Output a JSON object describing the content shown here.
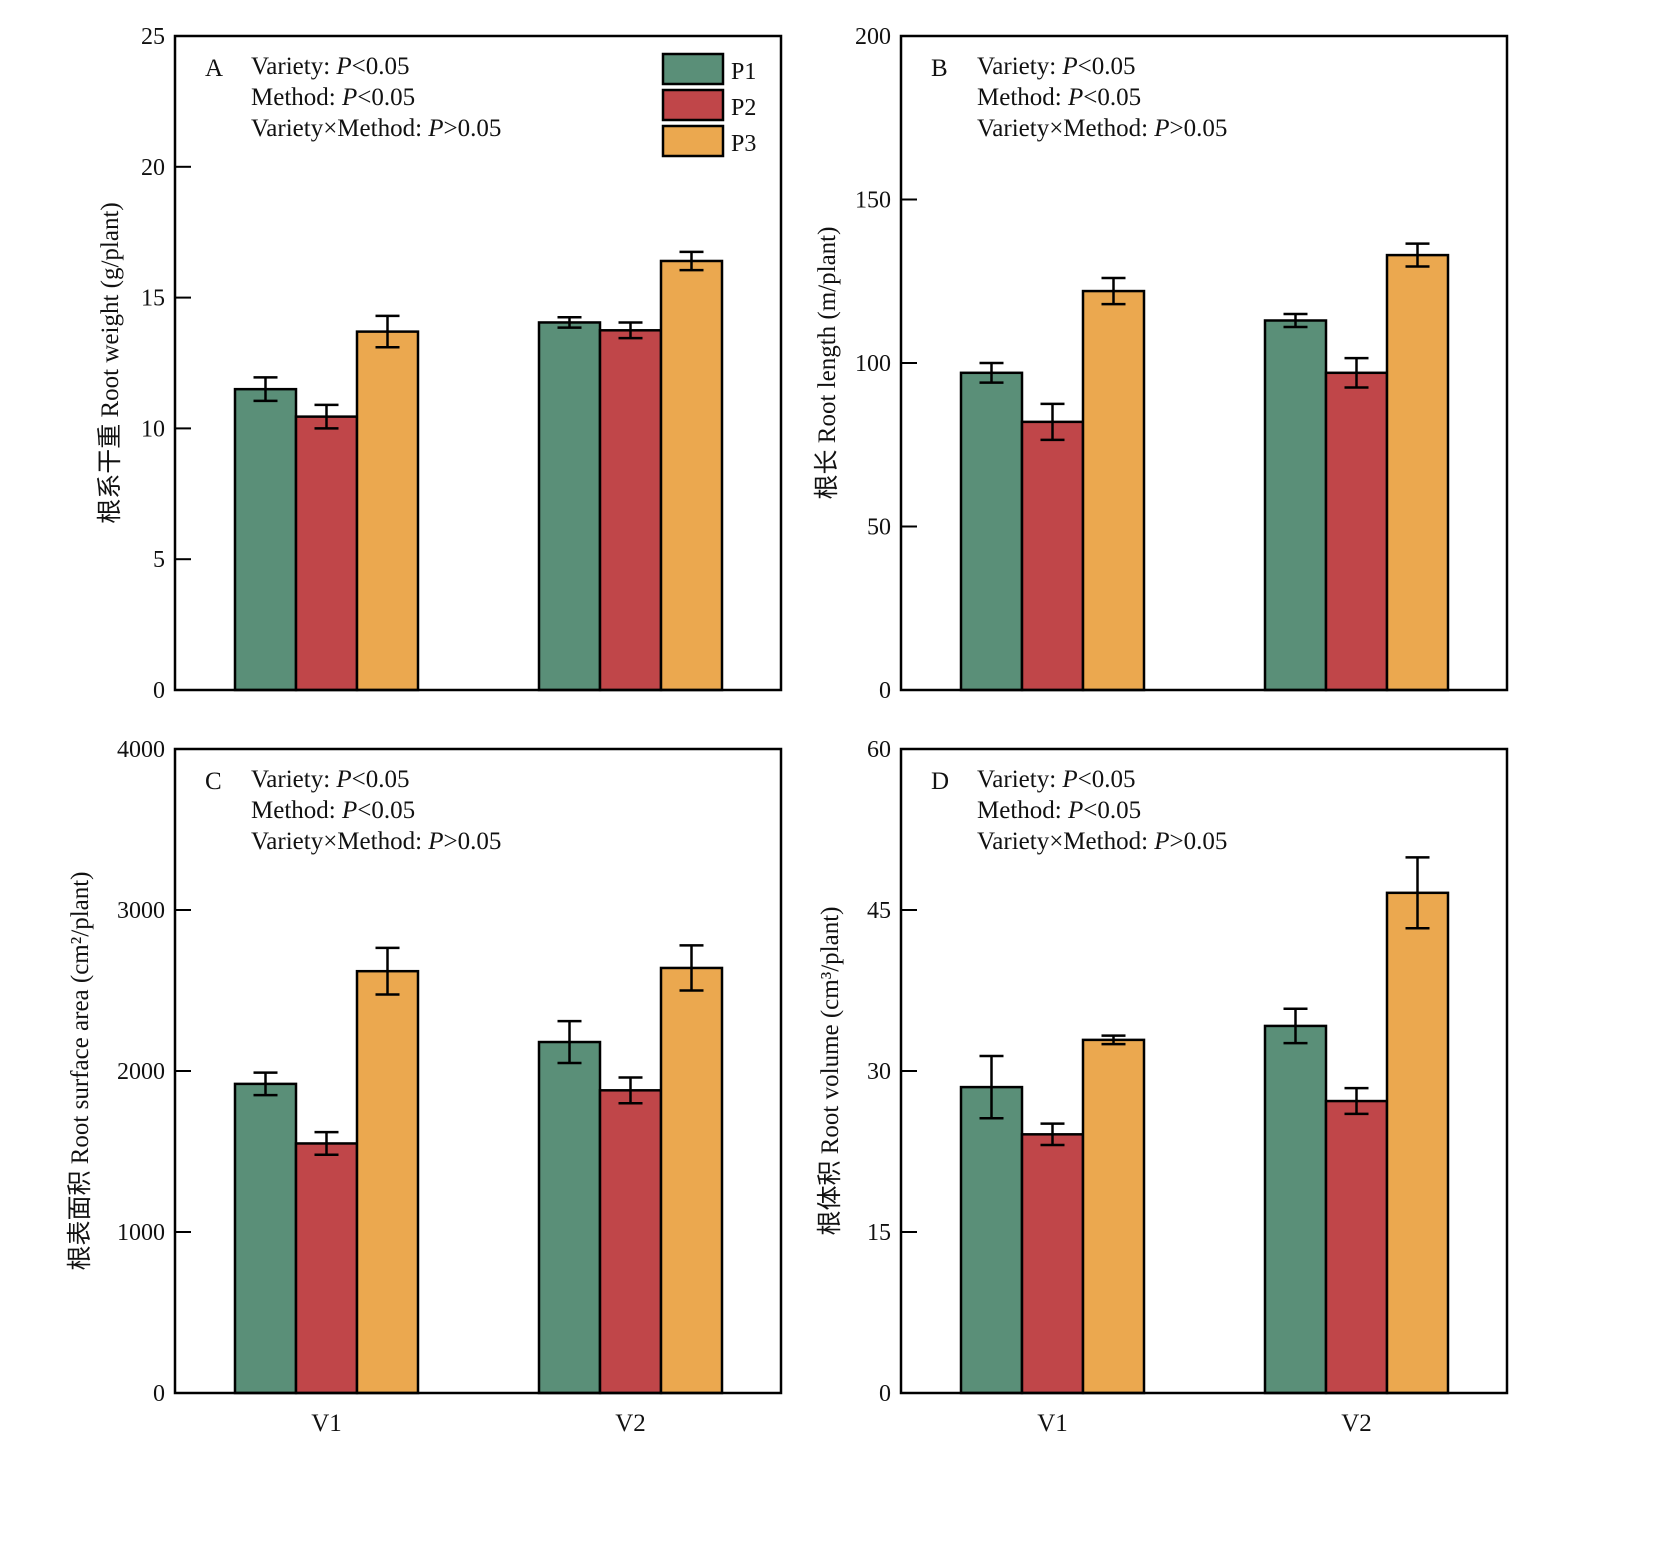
{
  "chart_data": [
    {
      "type": "bar",
      "panel": "A",
      "categories": [
        "V1",
        "V2"
      ],
      "series": [
        {
          "name": "P1",
          "values": [
            11.5,
            14.05
          ],
          "errors": [
            0.45,
            0.2
          ]
        },
        {
          "name": "P2",
          "values": [
            10.45,
            13.75
          ],
          "errors": [
            0.45,
            0.3
          ]
        },
        {
          "name": "P3",
          "values": [
            13.7,
            16.4
          ],
          "errors": [
            0.6,
            0.35
          ]
        }
      ],
      "ylabel": "根系干重 Root weight (g/plant)",
      "ylim": [
        0,
        25
      ],
      "yticks": [
        0,
        5,
        10,
        15,
        20,
        25
      ],
      "show_xticklabels": false,
      "stats": [
        {
          "label": "Variety: ",
          "p": "P",
          "rest": "<0.05"
        },
        {
          "label": "Method: ",
          "p": "P",
          "rest": "<0.05"
        },
        {
          "label": "Variety×Method: ",
          "p": "P",
          "rest": ">0.05"
        }
      ],
      "legend": true,
      "legend_position": "top-right"
    },
    {
      "type": "bar",
      "panel": "B",
      "categories": [
        "V1",
        "V2"
      ],
      "series": [
        {
          "name": "P1",
          "values": [
            97,
            113
          ],
          "errors": [
            3,
            2
          ]
        },
        {
          "name": "P2",
          "values": [
            82,
            97
          ],
          "errors": [
            5.5,
            4.5
          ]
        },
        {
          "name": "P3",
          "values": [
            122,
            133
          ],
          "errors": [
            4,
            3.5
          ]
        }
      ],
      "ylabel": "根长 Root length (m/plant)",
      "ylim": [
        0,
        200
      ],
      "yticks": [
        0,
        50,
        100,
        150,
        200
      ],
      "show_xticklabels": false,
      "stats": [
        {
          "label": "Variety: ",
          "p": "P",
          "rest": "<0.05"
        },
        {
          "label": "Method: ",
          "p": "P",
          "rest": "<0.05"
        },
        {
          "label": "Variety×Method: ",
          "p": "P",
          "rest": ">0.05"
        }
      ],
      "legend": false
    },
    {
      "type": "bar",
      "panel": "C",
      "categories": [
        "V1",
        "V2"
      ],
      "series": [
        {
          "name": "P1",
          "values": [
            1920,
            2180
          ],
          "errors": [
            70,
            130
          ]
        },
        {
          "name": "P2",
          "values": [
            1550,
            1880
          ],
          "errors": [
            70,
            80
          ]
        },
        {
          "name": "P3",
          "values": [
            2620,
            2640
          ],
          "errors": [
            145,
            140
          ]
        }
      ],
      "ylabel": "根表面积 Root surface area (cm²/plant)",
      "ylim": [
        0,
        4000
      ],
      "yticks": [
        0,
        1000,
        2000,
        3000,
        4000
      ],
      "show_xticklabels": true,
      "stats": [
        {
          "label": "Variety: ",
          "p": "P",
          "rest": "<0.05"
        },
        {
          "label": "Method: ",
          "p": "P",
          "rest": "<0.05"
        },
        {
          "label": "Variety×Method: ",
          "p": "P",
          "rest": ">0.05"
        }
      ],
      "legend": false
    },
    {
      "type": "bar",
      "panel": "D",
      "categories": [
        "V1",
        "V2"
      ],
      "series": [
        {
          "name": "P1",
          "values": [
            28.5,
            34.2
          ],
          "errors": [
            2.9,
            1.6
          ]
        },
        {
          "name": "P2",
          "values": [
            24.1,
            27.2
          ],
          "errors": [
            1.0,
            1.2
          ]
        },
        {
          "name": "P3",
          "values": [
            32.9,
            46.6
          ],
          "errors": [
            0.4,
            3.3
          ]
        }
      ],
      "ylabel": "根体积 Root volume (cm³/plant)",
      "ylim": [
        0,
        60
      ],
      "yticks": [
        0,
        15,
        30,
        45,
        60
      ],
      "show_xticklabels": true,
      "stats": [
        {
          "label": "Variety: ",
          "p": "P",
          "rest": "<0.05"
        },
        {
          "label": "Method: ",
          "p": "P",
          "rest": "<0.05"
        },
        {
          "label": "Variety×Method: ",
          "p": "P",
          "rest": ">0.05"
        }
      ],
      "legend": false
    }
  ],
  "colors": {
    "P1": "#5a8f78",
    "P2": "#c04649",
    "P3": "#eba84f"
  }
}
